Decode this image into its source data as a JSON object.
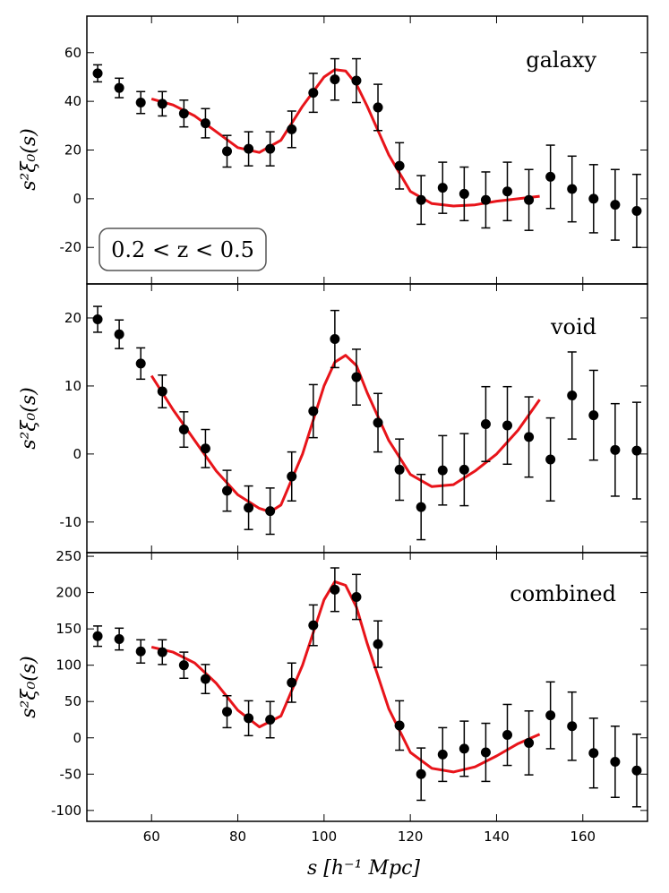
{
  "chart_data": {
    "type": "scatter",
    "xlabel": "s [h⁻¹ Mpc]",
    "xlim": [
      45,
      175
    ],
    "xticks": [
      60,
      80,
      100,
      120,
      140,
      160
    ],
    "panels": [
      {
        "name": "galaxy",
        "label": "galaxy",
        "ylabel": "s²ξ₀(s)",
        "ylim": [
          -35,
          75
        ],
        "yticks": [
          -20,
          0,
          20,
          40,
          60
        ],
        "annotation": "0.2 < z < 0.5",
        "points": {
          "x": [
            47.5,
            52.5,
            57.5,
            62.5,
            67.5,
            72.5,
            77.5,
            82.5,
            87.5,
            92.5,
            97.5,
            102.5,
            107.5,
            112.5,
            117.5,
            122.5,
            127.5,
            132.5,
            137.5,
            142.5,
            147.5,
            152.5,
            157.5,
            162.5,
            167.5,
            172.5
          ],
          "y": [
            51.5,
            45.5,
            39.5,
            39,
            35,
            31,
            19.5,
            20.5,
            20.5,
            28.5,
            43.5,
            49,
            48.5,
            37.5,
            13.5,
            -0.5,
            4.5,
            2,
            -0.5,
            3,
            -0.5,
            9,
            4,
            0,
            -2.5,
            -5
          ],
          "err": [
            3.5,
            4,
            4.5,
            5,
            5.5,
            6,
            6.5,
            7,
            7,
            7.5,
            8,
            8.5,
            9,
            9.5,
            9.5,
            10,
            10.5,
            11,
            11.5,
            12,
            12.5,
            13,
            13.5,
            14,
            14.5,
            15
          ]
        },
        "model": {
          "x": [
            60,
            65,
            70,
            75,
            80,
            85,
            90,
            95,
            100,
            102.5,
            105,
            107.5,
            110,
            115,
            120,
            125,
            130,
            135,
            140,
            145,
            150
          ],
          "y": [
            41,
            38.5,
            34,
            27.5,
            21,
            19,
            24,
            38,
            50,
            53,
            52.5,
            47,
            38,
            18,
            3,
            -2,
            -3,
            -2.5,
            -1,
            0,
            1
          ]
        }
      },
      {
        "name": "void",
        "label": "void",
        "ylabel": "s²ξ₀(s)",
        "ylim": [
          -14.5,
          25
        ],
        "yticks": [
          -10,
          0,
          10,
          20
        ],
        "points": {
          "x": [
            47.5,
            52.5,
            57.5,
            62.5,
            67.5,
            72.5,
            77.5,
            82.5,
            87.5,
            92.5,
            97.5,
            102.5,
            107.5,
            112.5,
            117.5,
            122.5,
            127.5,
            132.5,
            137.5,
            142.5,
            147.5,
            152.5,
            157.5,
            162.5,
            167.5,
            172.5
          ],
          "y": [
            19.8,
            17.6,
            13.3,
            9.2,
            3.6,
            0.8,
            -5.4,
            -7.9,
            -8.4,
            -3.3,
            6.3,
            16.9,
            11.3,
            4.6,
            -2.3,
            -7.8,
            -2.4,
            -2.3,
            4.4,
            4.2,
            2.5,
            -0.8,
            8.6,
            5.7,
            0.6,
            0.5
          ]
        },
        "errs": [
          1.9,
          2.1,
          2.3,
          2.4,
          2.6,
          2.8,
          3.0,
          3.2,
          3.4,
          3.6,
          3.9,
          4.2,
          4.1,
          4.3,
          4.5,
          4.8,
          5.1,
          5.3,
          5.5,
          5.7,
          5.9,
          6.1,
          6.4,
          6.6,
          6.8,
          7.1
        ],
        "model": {
          "x": [
            60,
            65,
            70,
            75,
            80,
            85,
            87.5,
            90,
            95,
            100,
            102.5,
            105,
            107.5,
            110,
            115,
            120,
            125,
            130,
            135,
            140,
            145,
            150
          ],
          "y": [
            11.5,
            6.5,
            2,
            -2.5,
            -6,
            -8,
            -8.5,
            -7.5,
            0,
            10,
            13.5,
            14.5,
            13,
            9,
            2,
            -3,
            -4.8,
            -4.5,
            -2.5,
            0,
            3.5,
            8
          ]
        }
      },
      {
        "name": "combined",
        "label": "combined",
        "ylabel": "s²ξ₀(s)",
        "ylim": [
          -115,
          255
        ],
        "yticks": [
          -100,
          -50,
          0,
          50,
          100,
          150,
          200,
          250
        ],
        "points": {
          "x": [
            47.5,
            52.5,
            57.5,
            62.5,
            67.5,
            72.5,
            77.5,
            82.5,
            87.5,
            92.5,
            97.5,
            102.5,
            107.5,
            112.5,
            117.5,
            122.5,
            127.5,
            132.5,
            137.5,
            142.5,
            147.5,
            152.5,
            157.5,
            162.5,
            167.5,
            172.5
          ],
          "y": [
            140,
            136,
            119,
            118,
            100,
            81,
            36,
            27,
            25,
            76,
            155,
            204,
            194,
            129,
            17,
            -50,
            -23,
            -15,
            -20,
            4,
            -7,
            31,
            16,
            -21,
            -33,
            -45
          ],
          "err": [
            14,
            15,
            16,
            17,
            18,
            20,
            22,
            24,
            25,
            27,
            28,
            30,
            31,
            32,
            34,
            36,
            37,
            38,
            40,
            42,
            44,
            46,
            47,
            48,
            49,
            50
          ]
        },
        "model": {
          "x": [
            60,
            65,
            70,
            75,
            80,
            85,
            90,
            95,
            100,
            102.5,
            105,
            107.5,
            110,
            115,
            120,
            125,
            130,
            135,
            140,
            145,
            150
          ],
          "y": [
            125,
            118,
            103,
            75,
            38,
            15,
            30,
            100,
            190,
            215,
            210,
            180,
            130,
            40,
            -20,
            -42,
            -47,
            -40,
            -25,
            -8,
            5
          ]
        }
      }
    ]
  }
}
